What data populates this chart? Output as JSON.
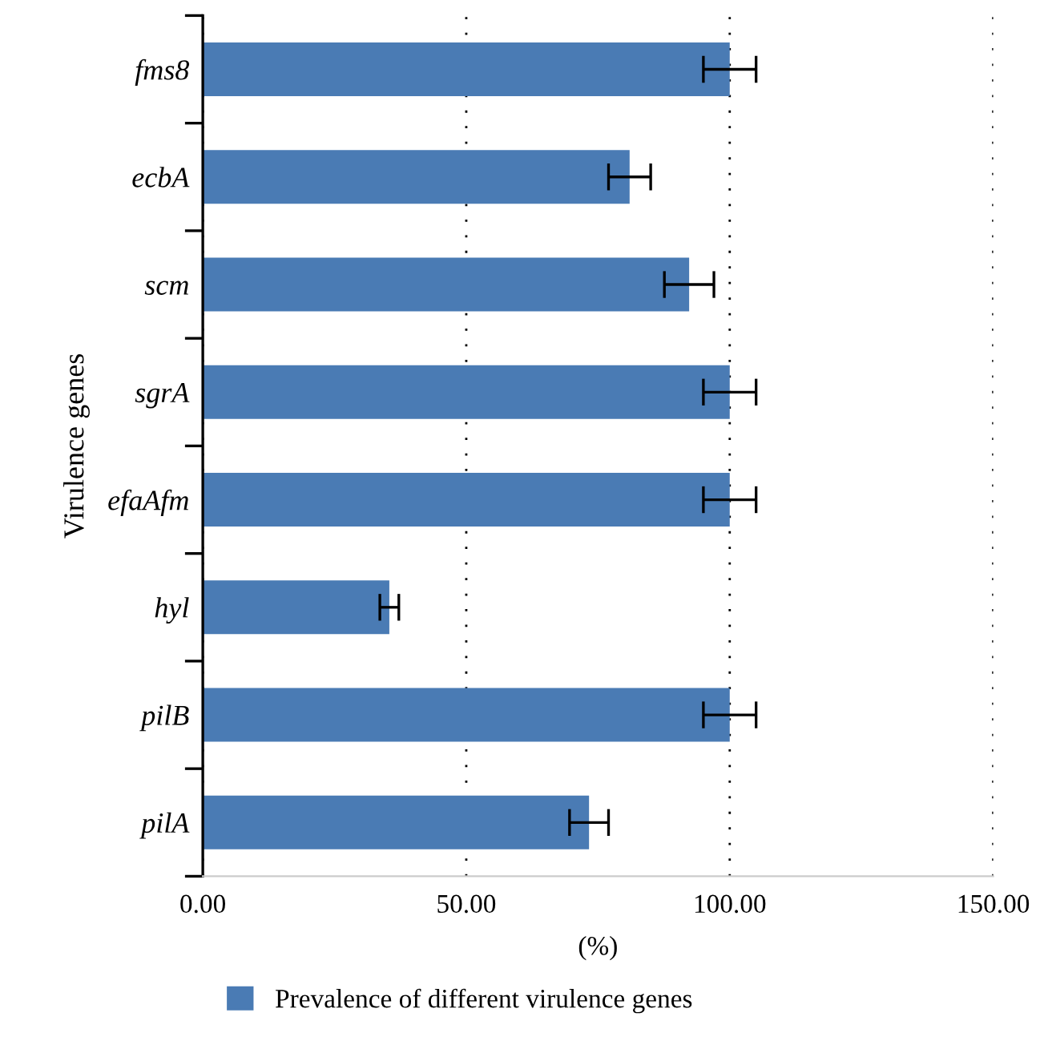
{
  "chart_data": {
    "type": "bar",
    "orientation": "horizontal",
    "ylabel": "Virulence genes",
    "xlabel": "(%)",
    "categories": [
      "fms8",
      "ecbA",
      "scm",
      "sgrA",
      "efaAfm",
      "hyl",
      "pilB",
      "pilA"
    ],
    "series": [
      {
        "name": "Prevalence of different virulence genes",
        "color": "#4a7bb4",
        "values": [
          100,
          81,
          92.3,
          100,
          100,
          35.4,
          100,
          73.3
        ],
        "errors": [
          5,
          4,
          4.7,
          5,
          5,
          1.8,
          5,
          3.7
        ]
      }
    ],
    "xlim": [
      0,
      150
    ],
    "xticks": [
      {
        "value": 0,
        "label": "0.00"
      },
      {
        "value": 50,
        "label": "50.00"
      },
      {
        "value": 100,
        "label": "100.00"
      },
      {
        "value": 150,
        "label": "150.00"
      }
    ],
    "grid": "x",
    "legend": "bottom"
  }
}
